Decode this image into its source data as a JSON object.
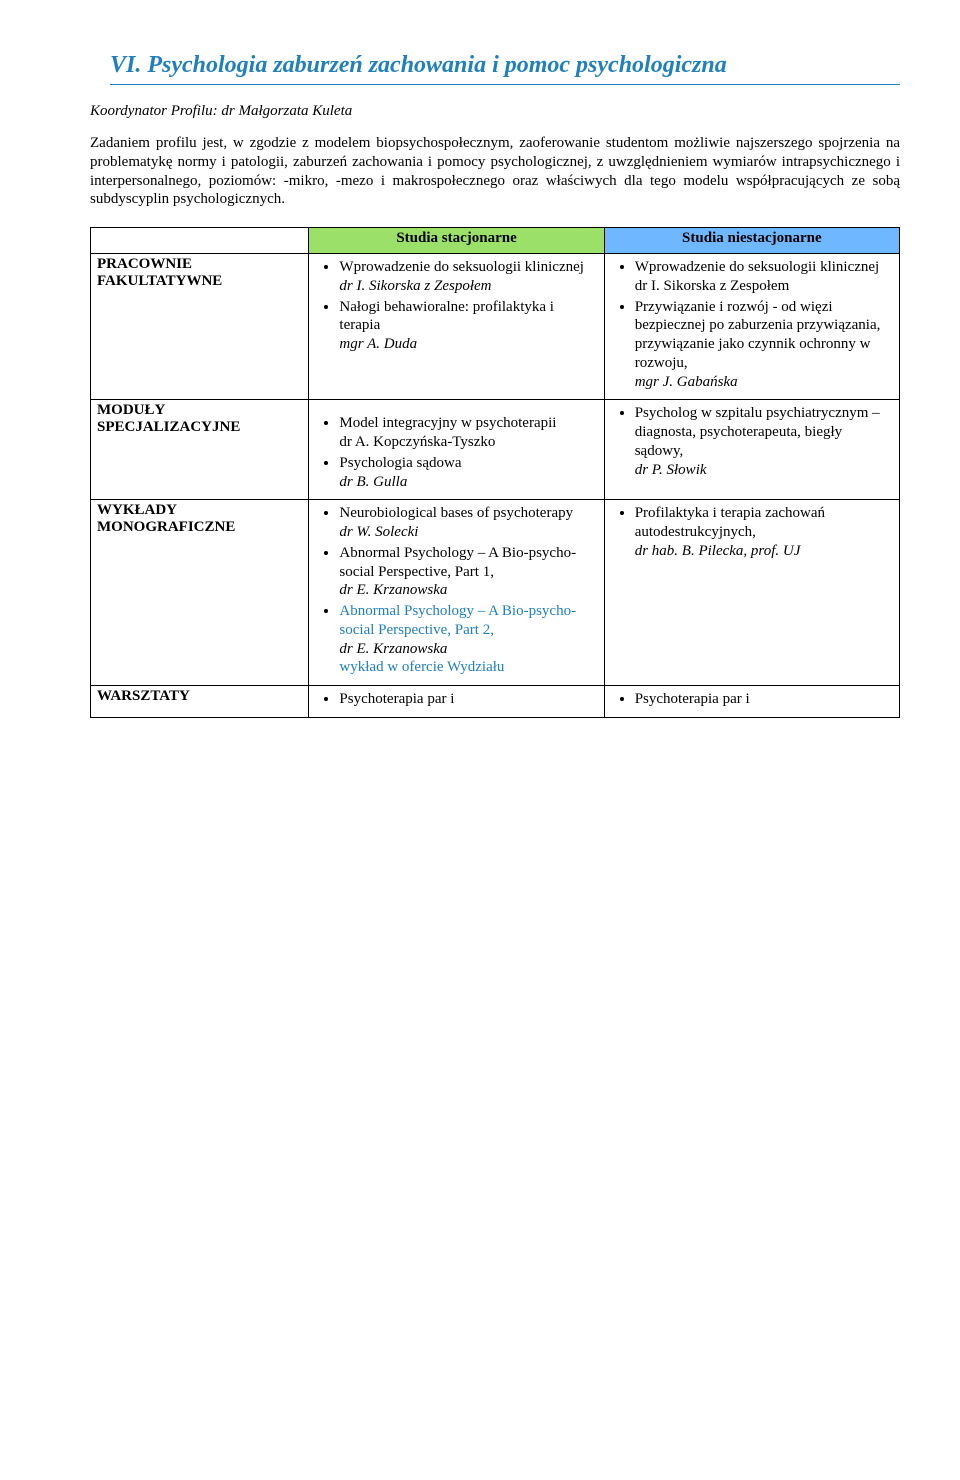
{
  "heading": "VI. Psychologia zaburzeń zachowania i pomoc psychologiczna",
  "coord_label": "Koordynator Profilu: ",
  "coord_name": "dr Małgorzata Kuleta",
  "description": "Zadaniem profilu jest, w zgodzie z modelem biopsychospołecznym, zaoferowanie studentom możliwie najszerszego spojrzenia na problematykę normy i patologii, zaburzeń zachowania i pomocy psychologicznej, z uwzględnieniem wymiarów intrapsychicznego i interpersonalnego, poziomów: -mikro, -mezo i makrospołecznego oraz właściwych dla tego modelu współpracujących ze sobą subdyscyplin psychologicznych.",
  "table": {
    "header": {
      "col1": "Studia stacjonarne",
      "col2": "Studia niestacjonarne"
    },
    "row1": {
      "label_a": "PRACOWNIE",
      "label_b": "FAKULTATYWNE",
      "left": {
        "b1_a": "Wprowadzenie do seksuologii klinicznej",
        "b1_b": "dr I. Sikorska z Zespołem",
        "b2_a": "Nałogi behawioralne: profilaktyka i terapia",
        "b2_b": "mgr A. Duda"
      },
      "right": {
        "b1_a": "Wprowadzenie do seksuologii klinicznej",
        "b1_b": "dr I. Sikorska z Zespołem",
        "b2_a": "Przywiązanie i rozwój - od więzi bezpiecznej po zaburzenia przywiązania, przywiązanie jako czynnik ochronny w rozwoju,",
        "b2_b": "mgr J. Gabańska"
      }
    },
    "row2": {
      "label_a": "MODUŁY",
      "label_b": "SPECJALIZACYJNE",
      "left": {
        "b1_a": "Model integracyjny w psychoterapii",
        "b1_b": "dr A. Kopczyńska-Tyszko",
        "b2_a": "Psychologia sądowa",
        "b2_b": "dr B. Gulla"
      },
      "right": {
        "b1_a": "Psycholog w szpitalu psychiatrycznym – diagnosta, psychoterapeuta, biegły sądowy,",
        "b1_b": "dr P. Słowik"
      }
    },
    "row3": {
      "label_a": "WYKŁADY",
      "label_b": "MONOGRAFICZNE",
      "left": {
        "b1_a": "Neurobiological bases of psychoterapy",
        "b1_b": "dr W. Solecki",
        "b2_a": "Abnormal Psychology – A Bio-psycho-social Perspective, Part 1,",
        "b2_b": "dr E. Krzanowska",
        "b3_a": "Abnormal Psychology – A Bio-psycho-social Perspective, Part 2,",
        "b3_b": "dr E. Krzanowska",
        "b3_c": "wykład w ofercie Wydziału"
      },
      "right": {
        "b1_a": "Profilaktyka i terapia zachowań autodestrukcyjnych,",
        "b1_b": "dr hab. B. Pilecka, prof. UJ"
      }
    },
    "row4": {
      "label": "WARSZTATY",
      "left": "Psychoterapia par i",
      "right": "Psychoterapia par i"
    }
  }
}
